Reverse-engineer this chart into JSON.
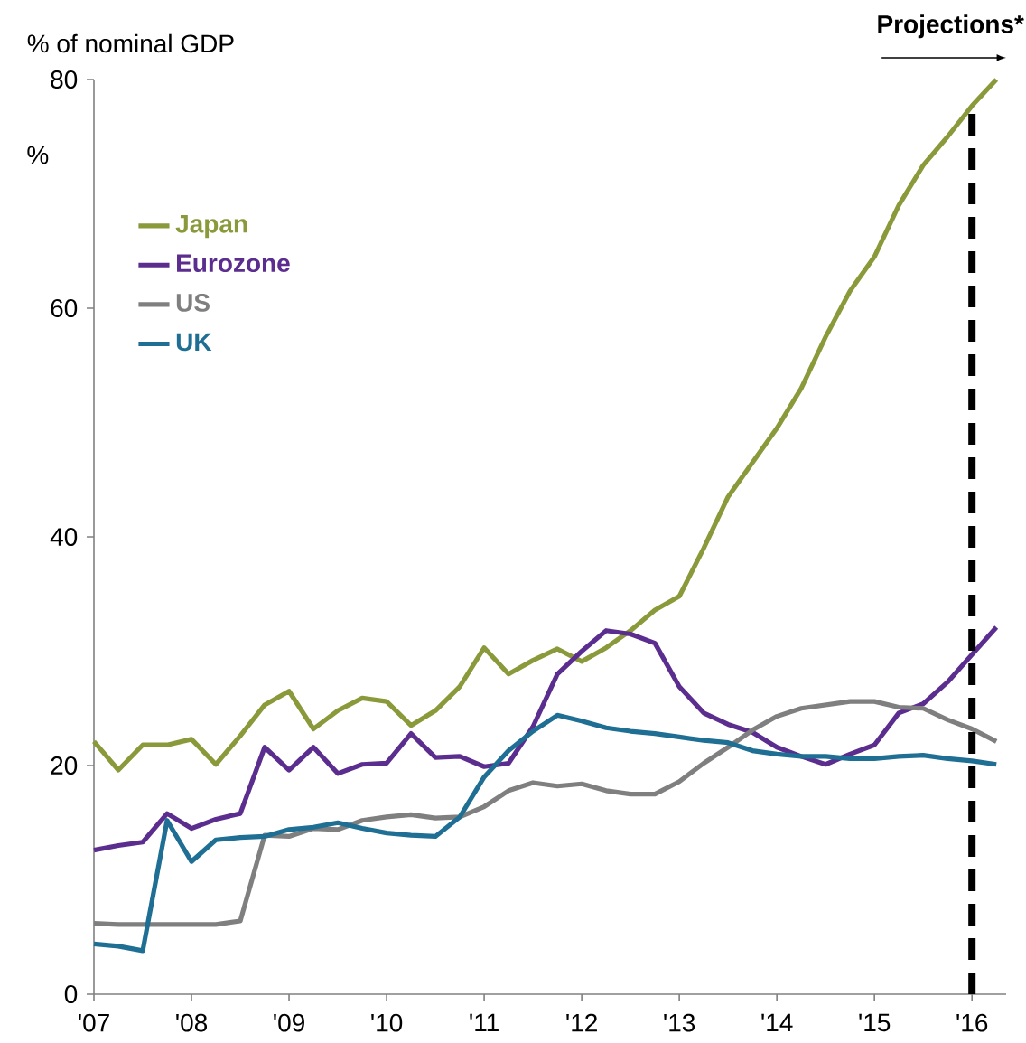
{
  "chart_data": {
    "type": "line",
    "title": "% of nominal GDP",
    "ylabel": "%",
    "x": [
      2007,
      2007.25,
      2007.5,
      2007.75,
      2008,
      2008.25,
      2008.5,
      2008.75,
      2009,
      2009.25,
      2009.5,
      2009.75,
      2010,
      2010.25,
      2010.5,
      2010.75,
      2011,
      2011.25,
      2011.5,
      2011.75,
      2012,
      2012.25,
      2012.5,
      2012.75,
      2013,
      2013.25,
      2013.5,
      2013.75,
      2014,
      2014.25,
      2014.5,
      2014.75,
      2015,
      2015.25,
      2015.5,
      2015.75,
      2016,
      2016.25
    ],
    "series": [
      {
        "name": "Japan",
        "color": "#8a9a3b",
        "values": [
          22.1,
          19.6,
          21.8,
          21.8,
          22.3,
          20.1,
          22.6,
          25.3,
          26.5,
          23.2,
          24.8,
          25.9,
          25.6,
          23.5,
          24.8,
          26.9,
          30.3,
          28.0,
          29.2,
          30.2,
          29.1,
          30.3,
          31.8,
          33.6,
          34.8,
          39,
          43.5,
          46.5,
          49.5,
          53,
          57.5,
          61.5,
          64.5,
          69,
          72.5,
          75,
          77.7,
          80
        ]
      },
      {
        "name": "Eurozone",
        "color": "#5b2d8e",
        "values": [
          12.6,
          13.0,
          13.3,
          15.8,
          14.5,
          15.3,
          15.8,
          21.6,
          19.6,
          21.6,
          19.3,
          20.1,
          20.2,
          22.8,
          20.7,
          20.8,
          19.9,
          20.2,
          23.4,
          28.0,
          30.0,
          31.8,
          31.5,
          30.7,
          26.9,
          24.6,
          23.6,
          22.9,
          21.6,
          20.8,
          20.1,
          21.0,
          21.8,
          24.6,
          25.4,
          27.3,
          29.7,
          32.1
        ]
      },
      {
        "name": "US",
        "color": "#7f7f7f",
        "values": [
          6.2,
          6.1,
          6.1,
          6.1,
          6.1,
          6.1,
          6.4,
          13.9,
          13.8,
          14.5,
          14.4,
          15.2,
          15.5,
          15.7,
          15.4,
          15.5,
          16.4,
          17.8,
          18.5,
          18.2,
          18.4,
          17.8,
          17.5,
          17.5,
          18.6,
          20.2,
          21.6,
          23.1,
          24.3,
          25.0,
          25.3,
          25.6,
          25.6,
          25.1,
          25.0,
          24.0,
          23.2,
          22.1
        ]
      },
      {
        "name": "UK",
        "color": "#1f6e94",
        "values": [
          4.4,
          4.2,
          3.8,
          15.2,
          11.6,
          13.5,
          13.7,
          13.8,
          14.4,
          14.6,
          15.0,
          14.5,
          14.1,
          13.9,
          13.8,
          15.5,
          19.0,
          21.3,
          23.0,
          24.4,
          23.9,
          23.3,
          23.0,
          22.8,
          22.5,
          22.2,
          22.0,
          21.3,
          21.0,
          20.8,
          20.8,
          20.6,
          20.6,
          20.8,
          20.9,
          20.6,
          20.4,
          20.1
        ]
      }
    ],
    "xlim": [
      2007,
      2016.35
    ],
    "xticks": [
      {
        "value": 2007,
        "label": "'07"
      },
      {
        "value": 2008,
        "label": "'08"
      },
      {
        "value": 2009,
        "label": "'09"
      },
      {
        "value": 2010,
        "label": "'10"
      },
      {
        "value": 2011,
        "label": "'11"
      },
      {
        "value": 2012,
        "label": "'12"
      },
      {
        "value": 2013,
        "label": "'13"
      },
      {
        "value": 2014,
        "label": "'14"
      },
      {
        "value": 2015,
        "label": "'15"
      },
      {
        "value": 2016,
        "label": "'16"
      }
    ],
    "ylim": [
      0,
      80
    ],
    "yticks": [
      0,
      20,
      40,
      60,
      80
    ],
    "ref_lines": [
      {
        "axis": "x",
        "value": 2016,
        "label": "Projections*",
        "color": "#000000",
        "line_style": "dashed"
      }
    ],
    "legend": "top left",
    "grid": false,
    "marker": "none",
    "line_style": "solid"
  }
}
